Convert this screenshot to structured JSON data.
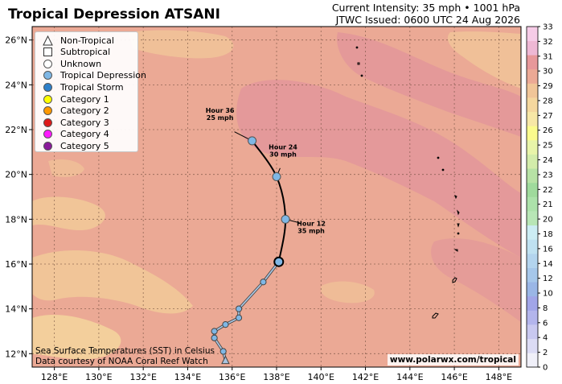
{
  "header": {
    "title": "Tropical Depression ATSANI",
    "intensity": "Current Intensity: 35 mph • 1001 hPa",
    "issued": "JTWC Issued: 0600 UTC 24 Aug 2026"
  },
  "legend": {
    "items": [
      {
        "label": "Non-Tropical",
        "symbol": "triangle",
        "color": "#ffffff"
      },
      {
        "label": "Subtropical",
        "symbol": "square",
        "color": "#ffffff"
      },
      {
        "label": "Unknown",
        "symbol": "circle",
        "color": "#ffffff"
      },
      {
        "label": "Tropical Depression",
        "symbol": "circle",
        "color": "#7fb7e5"
      },
      {
        "label": "Tropical Storm",
        "symbol": "circle",
        "color": "#2e7fc9"
      },
      {
        "label": "Category 1",
        "symbol": "circle",
        "color": "#ffff00"
      },
      {
        "label": "Category 2",
        "symbol": "circle",
        "color": "#ff9900"
      },
      {
        "label": "Category 3",
        "symbol": "circle",
        "color": "#dd1a1a"
      },
      {
        "label": "Category 4",
        "symbol": "circle",
        "color": "#ff1aff"
      },
      {
        "label": "Category 5",
        "symbol": "circle",
        "color": "#8b1a9a"
      }
    ]
  },
  "map": {
    "lon_range": [
      127,
      149
    ],
    "lat_range": [
      11.4,
      26.6
    ],
    "lon_ticks": [
      "128°E",
      "130°E",
      "132°E",
      "134°E",
      "136°E",
      "138°E",
      "140°E",
      "142°E",
      "144°E",
      "146°E",
      "148°E"
    ],
    "lat_ticks": [
      "12°N",
      "14°N",
      "16°N",
      "18°N",
      "20°N",
      "22°N",
      "24°N",
      "26°N"
    ],
    "past_track": [
      {
        "lon": 135.7,
        "lat": 11.7,
        "type": "Non-Tropical"
      },
      {
        "lon": 135.6,
        "lat": 12.1,
        "type": "Tropical Depression"
      },
      {
        "lon": 135.2,
        "lat": 12.7,
        "type": "Tropical Depression"
      },
      {
        "lon": 135.2,
        "lat": 13.0,
        "type": "Tropical Depression"
      },
      {
        "lon": 135.7,
        "lat": 13.3,
        "type": "Tropical Depression"
      },
      {
        "lon": 136.3,
        "lat": 13.6,
        "type": "Tropical Depression"
      },
      {
        "lon": 136.3,
        "lat": 14.0,
        "type": "Tropical Depression"
      },
      {
        "lon": 137.4,
        "lat": 15.2,
        "type": "Tropical Depression"
      },
      {
        "lon": 138.1,
        "lat": 16.1,
        "type": "Tropical Depression"
      }
    ],
    "current_position": {
      "lon": 138.1,
      "lat": 16.1
    },
    "forecast": [
      {
        "hour": "Hour 12",
        "wind": "35 mph",
        "lon": 138.4,
        "lat": 18.0,
        "type": "Tropical Depression"
      },
      {
        "hour": "Hour 24",
        "wind": "30 mph",
        "lon": 138.0,
        "lat": 19.9,
        "type": "Tropical Depression"
      },
      {
        "hour": "Hour 36",
        "wind": "25 mph",
        "lon": 136.9,
        "lat": 21.5,
        "type": "Tropical Depression"
      }
    ]
  },
  "colorbar": {
    "ticks": [
      "0",
      "2",
      "4",
      "6",
      "8",
      "10",
      "12",
      "14",
      "16",
      "18",
      "20",
      "21",
      "22",
      "23",
      "24",
      "25",
      "26",
      "27",
      "28",
      "29",
      "30",
      "31",
      "32",
      "33"
    ],
    "colors": [
      "#f0f0f9",
      "#dcdcf5",
      "#c9c9f0",
      "#b3b5ec",
      "#a1a5e8",
      "#9ab6e6",
      "#a6c7ea",
      "#b3d4ee",
      "#bfe1f1",
      "#ccedf4",
      "#b8e6b6",
      "#ace2aa",
      "#9fda9c",
      "#b7e2a5",
      "#d3ecaa",
      "#e8f4a9",
      "#fbfb8d",
      "#f7e7a6",
      "#f5d79e",
      "#f1c598",
      "#eca995",
      "#e7989a",
      "#eeb8d4",
      "#f6cce7"
    ]
  },
  "footer": {
    "sst_note": "Sea Surface Temperatures (SST) in Celsius",
    "data_note": "Data courtesy of NOAA Coral Reef Watch",
    "credit": "www.polarwx.com/tropical"
  }
}
